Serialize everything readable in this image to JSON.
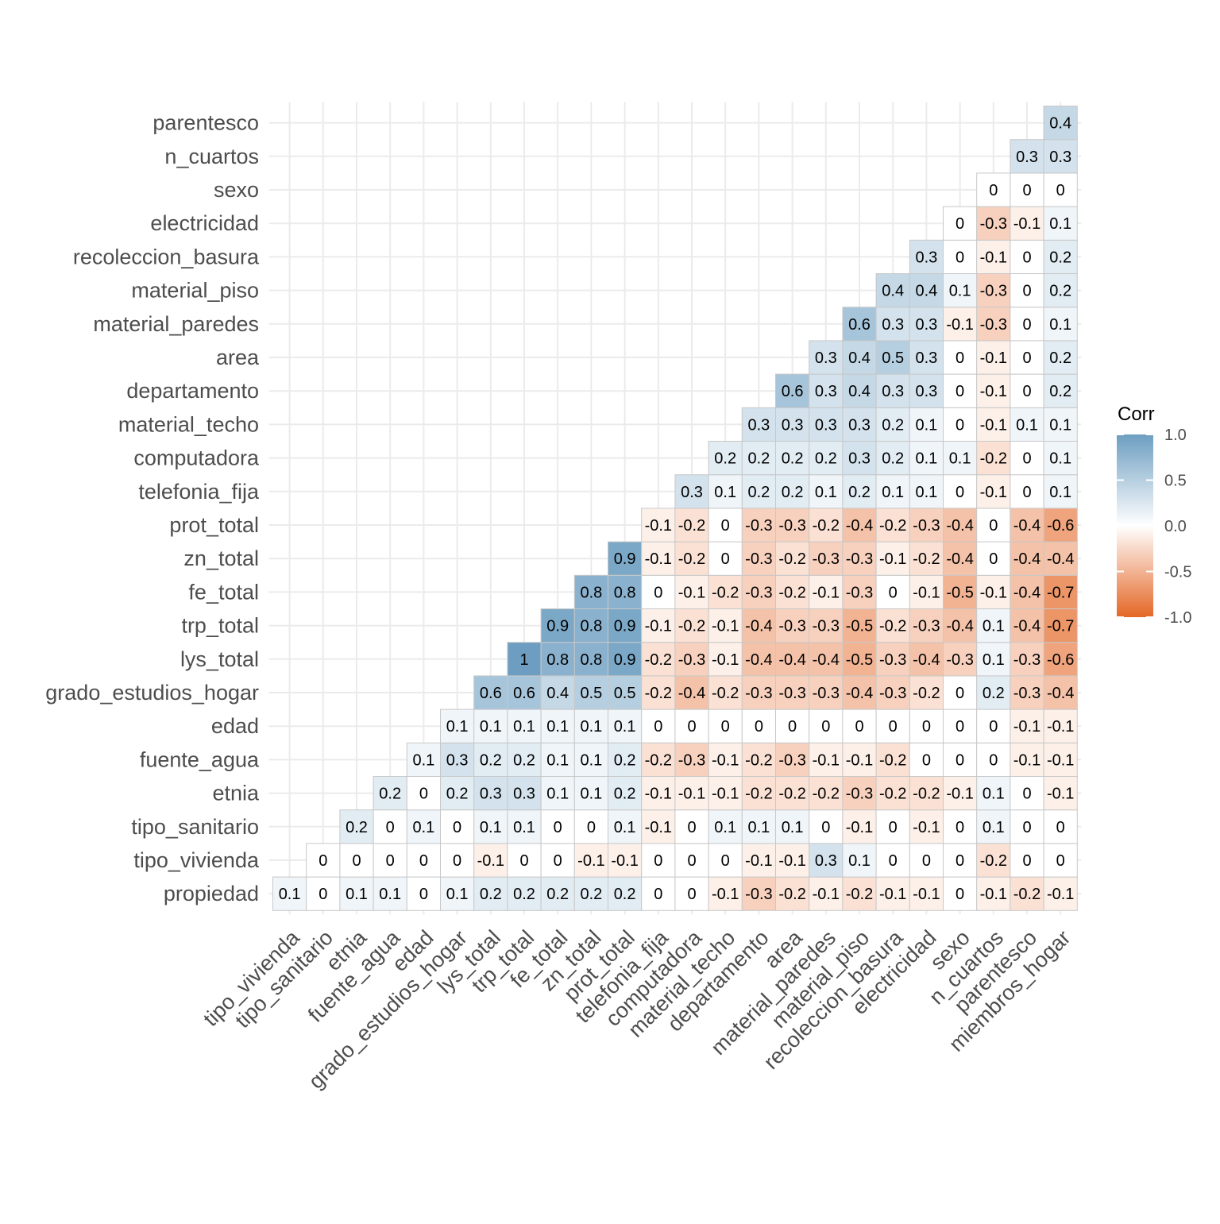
{
  "chart_data": {
    "type": "heatmap",
    "x_labels": [
      "tipo_vivienda",
      "tipo_sanitario",
      "etnia",
      "fuente_agua",
      "edad",
      "grado_estudios_hogar",
      "lys_total",
      "trp_total",
      "fe_total",
      "zn_total",
      "prot_total",
      "telefonia_fija",
      "computadora",
      "material_techo",
      "departamento",
      "area",
      "material_paredes",
      "material_piso",
      "recoleccion_basura",
      "electricidad",
      "sexo",
      "n_cuartos",
      "parentesco",
      "miembros_hogar"
    ],
    "y_labels": [
      "propiedad",
      "tipo_vivienda",
      "tipo_sanitario",
      "etnia",
      "fuente_agua",
      "edad",
      "grado_estudios_hogar",
      "lys_total",
      "trp_total",
      "fe_total",
      "zn_total",
      "prot_total",
      "telefonia_fija",
      "computadora",
      "material_techo",
      "departamento",
      "area",
      "material_paredes",
      "material_piso",
      "recoleccion_basura",
      "electricidad",
      "sexo",
      "n_cuartos",
      "parentesco"
    ],
    "rows": [
      {
        "label": "propiedad",
        "values": [
          "0.1",
          "0",
          "0.1",
          "0.1",
          "0",
          "0.1",
          "0.2",
          "0.2",
          "0.2",
          "0.2",
          "0.2",
          "0",
          "0",
          "-0.1",
          "-0.3",
          "-0.2",
          "-0.1",
          "-0.2",
          "-0.1",
          "-0.1",
          "0",
          "-0.1",
          "-0.2",
          "-0.1"
        ]
      },
      {
        "label": "tipo_vivienda",
        "values": [
          "0",
          "0",
          "0",
          "0",
          "0",
          "-0.1",
          "0",
          "0",
          "-0.1",
          "-0.1",
          "0",
          "0",
          "0",
          "-0.1",
          "-0.1",
          "0.3",
          "0.1",
          "0",
          "0",
          "0",
          "-0.2",
          "0",
          "0"
        ]
      },
      {
        "label": "tipo_sanitario",
        "values": [
          "0.2",
          "0",
          "0.1",
          "0",
          "0.1",
          "0.1",
          "0",
          "0",
          "0.1",
          "-0.1",
          "0",
          "0.1",
          "0.1",
          "0.1",
          "0",
          "-0.1",
          "0",
          "-0.1",
          "0",
          "0.1",
          "0",
          "0"
        ]
      },
      {
        "label": "etnia",
        "values": [
          "0.2",
          "0",
          "0.2",
          "0.3",
          "0.3",
          "0.1",
          "0.1",
          "0.2",
          "-0.1",
          "-0.1",
          "-0.1",
          "-0.2",
          "-0.2",
          "-0.2",
          "-0.3",
          "-0.2",
          "-0.2",
          "-0.1",
          "0.1",
          "0",
          "-0.1"
        ]
      },
      {
        "label": "fuente_agua",
        "values": [
          "0.1",
          "0.3",
          "0.2",
          "0.2",
          "0.1",
          "0.1",
          "0.2",
          "-0.2",
          "-0.3",
          "-0.1",
          "-0.2",
          "-0.3",
          "-0.1",
          "-0.1",
          "-0.2",
          "0",
          "0",
          "0",
          "-0.1",
          "-0.1"
        ]
      },
      {
        "label": "edad",
        "values": [
          "0.1",
          "0.1",
          "0.1",
          "0.1",
          "0.1",
          "0.1",
          "0",
          "0",
          "0",
          "0",
          "0",
          "0",
          "0",
          "0",
          "0",
          "0",
          "0",
          "-0.1",
          "-0.1"
        ]
      },
      {
        "label": "grado_estudios_hogar",
        "values": [
          "0.6",
          "0.6",
          "0.4",
          "0.5",
          "0.5",
          "-0.2",
          "-0.4",
          "-0.2",
          "-0.3",
          "-0.3",
          "-0.3",
          "-0.4",
          "-0.3",
          "-0.2",
          "0",
          "0.2",
          "-0.3",
          "-0.4"
        ]
      },
      {
        "label": "lys_total",
        "values": [
          "1",
          "0.8",
          "0.8",
          "0.9",
          "-0.2",
          "-0.3",
          "-0.1",
          "-0.4",
          "-0.4",
          "-0.4",
          "-0.5",
          "-0.3",
          "-0.4",
          "-0.3",
          "0.1",
          "-0.3",
          "-0.6"
        ]
      },
      {
        "label": "trp_total",
        "values": [
          "0.9",
          "0.8",
          "0.9",
          "-0.1",
          "-0.2",
          "-0.1",
          "-0.4",
          "-0.3",
          "-0.3",
          "-0.5",
          "-0.2",
          "-0.3",
          "-0.4",
          "0.1",
          "-0.4",
          "-0.7"
        ]
      },
      {
        "label": "fe_total",
        "values": [
          "0.8",
          "0.8",
          "0",
          "-0.1",
          "-0.2",
          "-0.3",
          "-0.2",
          "-0.1",
          "-0.3",
          "0",
          "-0.1",
          "-0.5",
          "-0.1",
          "-0.4",
          "-0.7"
        ]
      },
      {
        "label": "zn_total",
        "values": [
          "0.9",
          "-0.1",
          "-0.2",
          "0",
          "-0.3",
          "-0.2",
          "-0.3",
          "-0.3",
          "-0.1",
          "-0.2",
          "-0.4",
          "0",
          "-0.4",
          "-0.4"
        ]
      },
      {
        "label": "prot_total",
        "values": [
          "-0.1",
          "-0.2",
          "0",
          "-0.3",
          "-0.3",
          "-0.2",
          "-0.4",
          "-0.2",
          "-0.3",
          "-0.4",
          "0",
          "-0.4",
          "-0.6"
        ]
      },
      {
        "label": "telefonia_fija",
        "values": [
          "0.3",
          "0.1",
          "0.2",
          "0.2",
          "0.1",
          "0.2",
          "0.1",
          "0.1",
          "0",
          "-0.1",
          "0",
          "0.1"
        ]
      },
      {
        "label": "computadora",
        "values": [
          "0.2",
          "0.2",
          "0.2",
          "0.2",
          "0.3",
          "0.2",
          "0.1",
          "0.1",
          "-0.2",
          "0",
          "0.1"
        ]
      },
      {
        "label": "material_techo",
        "values": [
          "0.3",
          "0.3",
          "0.3",
          "0.3",
          "0.2",
          "0.1",
          "0",
          "-0.1",
          "0.1",
          "0.1"
        ]
      },
      {
        "label": "departamento",
        "values": [
          "0.6",
          "0.3",
          "0.4",
          "0.3",
          "0.3",
          "0",
          "-0.1",
          "0",
          "0.2"
        ]
      },
      {
        "label": "area",
        "values": [
          "0.3",
          "0.4",
          "0.5",
          "0.3",
          "0",
          "-0.1",
          "0",
          "0.2"
        ]
      },
      {
        "label": "material_paredes",
        "values": [
          "0.6",
          "0.3",
          "0.3",
          "-0.1",
          "-0.3",
          "0",
          "0.1"
        ]
      },
      {
        "label": "material_piso",
        "values": [
          "0.4",
          "0.4",
          "0.1",
          "-0.3",
          "0",
          "0.2"
        ]
      },
      {
        "label": "recoleccion_basura",
        "values": [
          "0.3",
          "0",
          "-0.1",
          "0",
          "0.2"
        ]
      },
      {
        "label": "electricidad",
        "values": [
          "0",
          "-0.3",
          "-0.1",
          "0.1"
        ]
      },
      {
        "label": "sexo",
        "values": [
          "0",
          "0",
          "0"
        ]
      },
      {
        "label": "n_cuartos",
        "values": [
          "0.3",
          "0.3"
        ]
      },
      {
        "label": "parentesco",
        "values": [
          "0.4"
        ]
      }
    ],
    "color_scale": {
      "low": "#E46726",
      "mid": "#ffffff",
      "high": "#6D9EC1",
      "limits": [
        -1,
        1
      ]
    },
    "legend": {
      "title": "Corr",
      "ticks": [
        "1.0",
        "0.5",
        "0.0",
        "-0.5",
        "-1.0"
      ],
      "position": "right"
    },
    "grid": true
  }
}
